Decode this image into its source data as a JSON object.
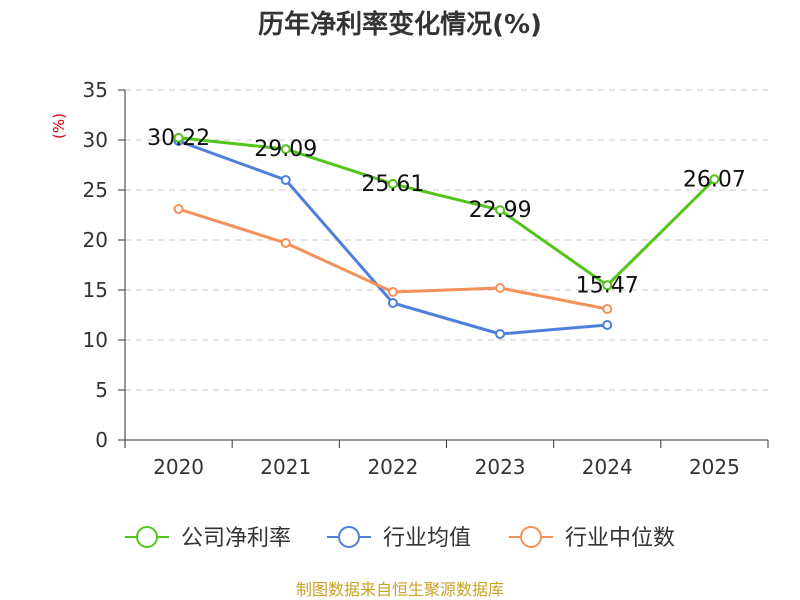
{
  "chart_data": {
    "type": "line",
    "title": "历年净利率变化情况(%)",
    "ylabel": "(%)",
    "xlabel": "",
    "ylim": [
      0,
      35
    ],
    "yticks": [
      0,
      5,
      10,
      15,
      20,
      25,
      30,
      35
    ],
    "categories": [
      "2020",
      "2021",
      "2022",
      "2023",
      "2024",
      "2025"
    ],
    "grid": true,
    "legend_position": "bottom",
    "series": [
      {
        "name": "公司净利率",
        "color": "#52c41a",
        "values": [
          30.22,
          29.09,
          25.61,
          22.99,
          15.47,
          26.07
        ],
        "labels": [
          "30.22",
          "29.09",
          "25.61",
          "22.99",
          "15.47",
          "26.07"
        ]
      },
      {
        "name": "行业均值",
        "color": "#4e7fdc",
        "values": [
          29.9,
          26.0,
          13.7,
          10.6,
          11.5,
          null
        ]
      },
      {
        "name": "行业中位数",
        "color": "#f4905a",
        "values": [
          23.1,
          19.7,
          14.8,
          15.2,
          13.1,
          null
        ]
      }
    ],
    "source": "制图数据来自恒生聚源数据库"
  }
}
